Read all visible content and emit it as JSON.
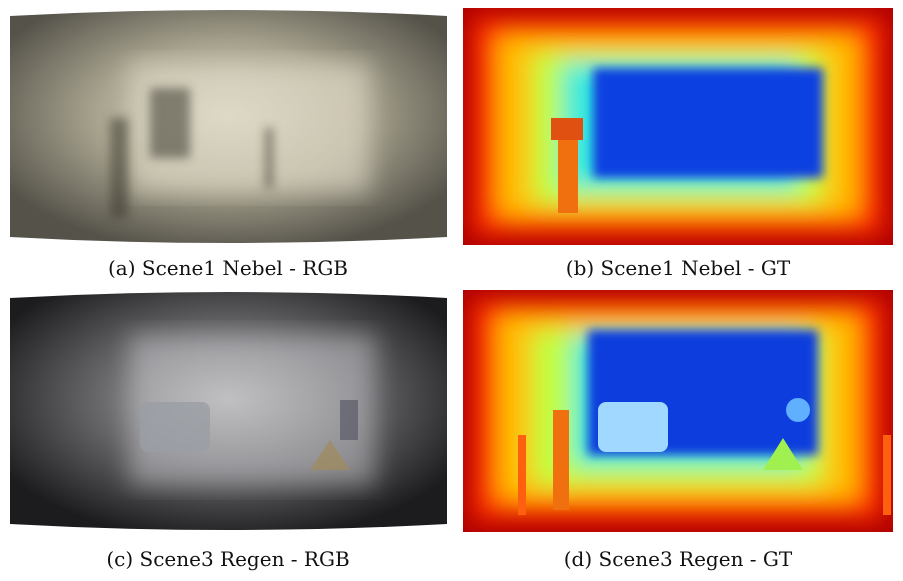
{
  "figure": {
    "panels": [
      {
        "caption": "(a) Scene1 Nebel - RGB"
      },
      {
        "caption": "(b) Scene1 Nebel - GT"
      },
      {
        "caption": "(c) Scene3 Regen - RGB"
      },
      {
        "caption": "(d) Scene3 Regen - GT"
      }
    ]
  }
}
